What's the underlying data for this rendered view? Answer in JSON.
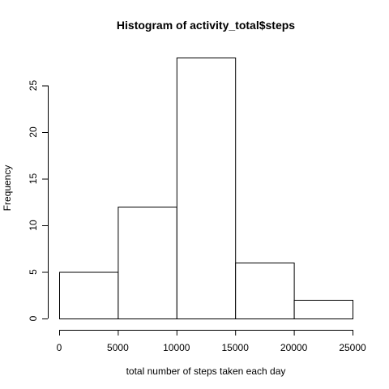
{
  "chart_data": {
    "type": "bar",
    "title": "Histogram of activity_total$steps",
    "xlabel": "total number of steps taken each day",
    "ylabel": "Frequency",
    "bins": [
      {
        "from": 0,
        "to": 5000,
        "count": 5
      },
      {
        "from": 5000,
        "to": 10000,
        "count": 12
      },
      {
        "from": 10000,
        "to": 15000,
        "count": 28
      },
      {
        "from": 15000,
        "to": 20000,
        "count": 6
      },
      {
        "from": 20000,
        "to": 25000,
        "count": 2
      }
    ],
    "xlim": [
      0,
      25000
    ],
    "ylim": [
      0,
      28
    ],
    "x_ticks": [
      0,
      5000,
      10000,
      15000,
      20000,
      25000
    ],
    "y_ticks": [
      0,
      5,
      10,
      15,
      20,
      25
    ],
    "grid": false,
    "bar_fill": "#ffffff",
    "bar_stroke": "#000000"
  }
}
